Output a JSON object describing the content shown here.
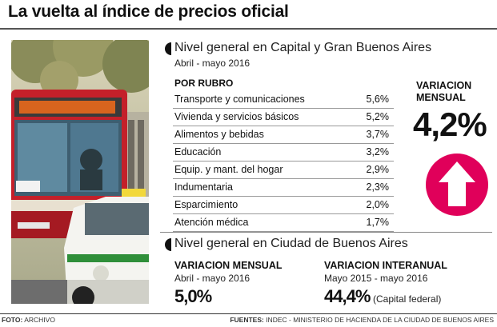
{
  "headline": "La vuelta al índice de precios oficial",
  "section1": {
    "title": "Nivel general en Capital y Gran Buenos Aires",
    "period": "Abril - mayo 2016",
    "rubro_header": "POR RUBRO",
    "rows": [
      {
        "label": "Transporte y comunicaciones",
        "value": "5,6%"
      },
      {
        "label": "Vivienda y servicios básicos",
        "value": "5,2%"
      },
      {
        "label": "Alimentos y bebidas",
        "value": "3,7%"
      },
      {
        "label": "Educación",
        "value": "3,2%"
      },
      {
        "label": "Equip. y mant. del hogar",
        "value": "2,9%"
      },
      {
        "label": "Indumentaria",
        "value": "2,3%"
      },
      {
        "label": "Esparcimiento",
        "value": "2,0%"
      },
      {
        "label": "Atención médica",
        "value": "1,7%"
      }
    ],
    "variacion_label_line1": "VARIACION",
    "variacion_label_line2": "MENSUAL",
    "variacion_value": "4,2%",
    "arrow_color": "#e0005a",
    "arrow_icon": "up-arrow-icon"
  },
  "section2": {
    "title": "Nivel general en Ciudad de Buenos Aires",
    "mensual_label": "VARIACION MENSUAL",
    "mensual_period": "Abril - mayo 2016",
    "mensual_value": "5,0%",
    "interanual_label": "VARIACION INTERANUAL",
    "interanual_period": "Mayo 2015 - mayo 2016",
    "interanual_value": "44,4%",
    "interanual_note": "(Capital federal)"
  },
  "footer": {
    "foto_label": "FOTO:",
    "foto_value": "ARCHIVO",
    "fuentes_label": "FUENTES:",
    "fuentes_value": "INDEC - MINISTERIO DE HACIENDA DE LA CIUDAD DE BUENOS AIRES"
  }
}
